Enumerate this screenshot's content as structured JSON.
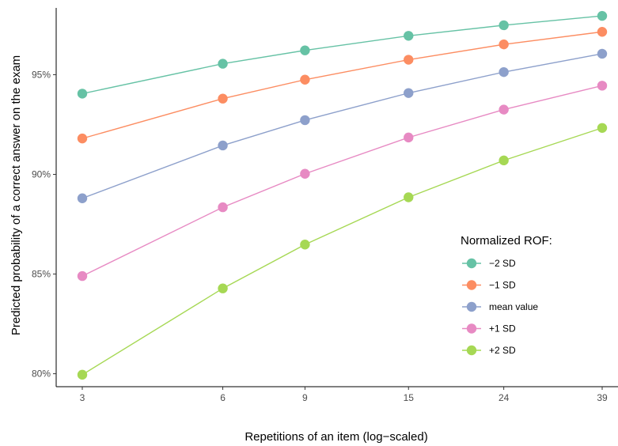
{
  "chart_data": {
    "type": "line",
    "xlabel": "Repetitions of an item (log−scaled)",
    "ylabel": "Predicted probability of a correct answer on the exam",
    "x_scale": "log",
    "x": [
      3,
      6,
      9,
      15,
      24,
      39
    ],
    "x_tick_labels": [
      "3",
      "6",
      "9",
      "15",
      "24",
      "39"
    ],
    "y_ticks": [
      0.8,
      0.85,
      0.9,
      0.95
    ],
    "y_tick_labels": [
      "80%",
      "85%",
      "90%",
      "95%"
    ],
    "ylim": [
      0.7935,
      0.9835
    ],
    "grid": false,
    "legend": {
      "title": "Normalized ROF:",
      "position": "right"
    },
    "series": [
      {
        "name": "−2 SD",
        "color": "#66C2A5",
        "values": [
          0.9405,
          0.9555,
          0.9622,
          0.9695,
          0.9748,
          0.9795
        ]
      },
      {
        "name": "−1 SD",
        "color": "#FC8D62",
        "values": [
          0.918,
          0.938,
          0.9475,
          0.9575,
          0.9652,
          0.9715
        ]
      },
      {
        "name": "mean value",
        "color": "#8DA0CB",
        "values": [
          0.888,
          0.9145,
          0.9272,
          0.9408,
          0.9513,
          0.9605
        ]
      },
      {
        "name": "+1 SD",
        "color": "#E78AC3",
        "values": [
          0.849,
          0.8835,
          0.9003,
          0.9185,
          0.9325,
          0.9445
        ]
      },
      {
        "name": "+2 SD",
        "color": "#A6D854",
        "values": [
          0.7995,
          0.8428,
          0.8648,
          0.8885,
          0.907,
          0.9233
        ]
      }
    ]
  }
}
